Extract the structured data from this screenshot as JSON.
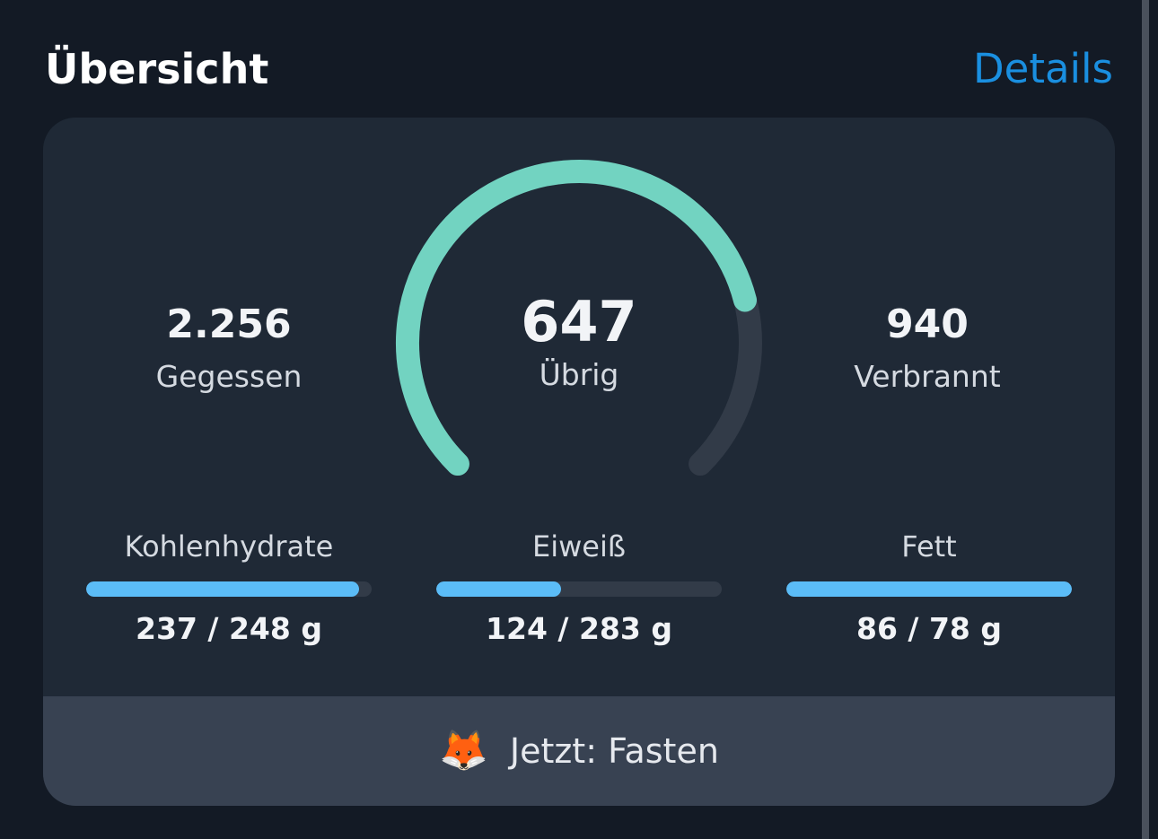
{
  "section": {
    "title": "Übersicht",
    "details_label": "Details"
  },
  "summary": {
    "eaten": {
      "value": "2.256",
      "label": "Gegessen"
    },
    "remaining": {
      "value": "647",
      "label": "Übrig"
    },
    "burned": {
      "value": "940",
      "label": "Verbrannt"
    }
  },
  "gauge": {
    "progress": 0.78,
    "fill_color": "#72d3c1",
    "track_color": "#323b48"
  },
  "macros": [
    {
      "name": "Kohlenhydrate",
      "amount": "237 / 248 g",
      "progress": 0.956
    },
    {
      "name": "Eiweiß",
      "amount": "124 / 283 g",
      "progress": 0.438
    },
    {
      "name": "Fett",
      "amount": "86 / 78 g",
      "progress": 1.0
    }
  ],
  "footer": {
    "icon": "fox-emoji",
    "emoji": "🦊",
    "label": "Jetzt: Fasten"
  },
  "colors": {
    "accent": "#1a8fe0",
    "macro_fill": "#5bbcf7"
  }
}
